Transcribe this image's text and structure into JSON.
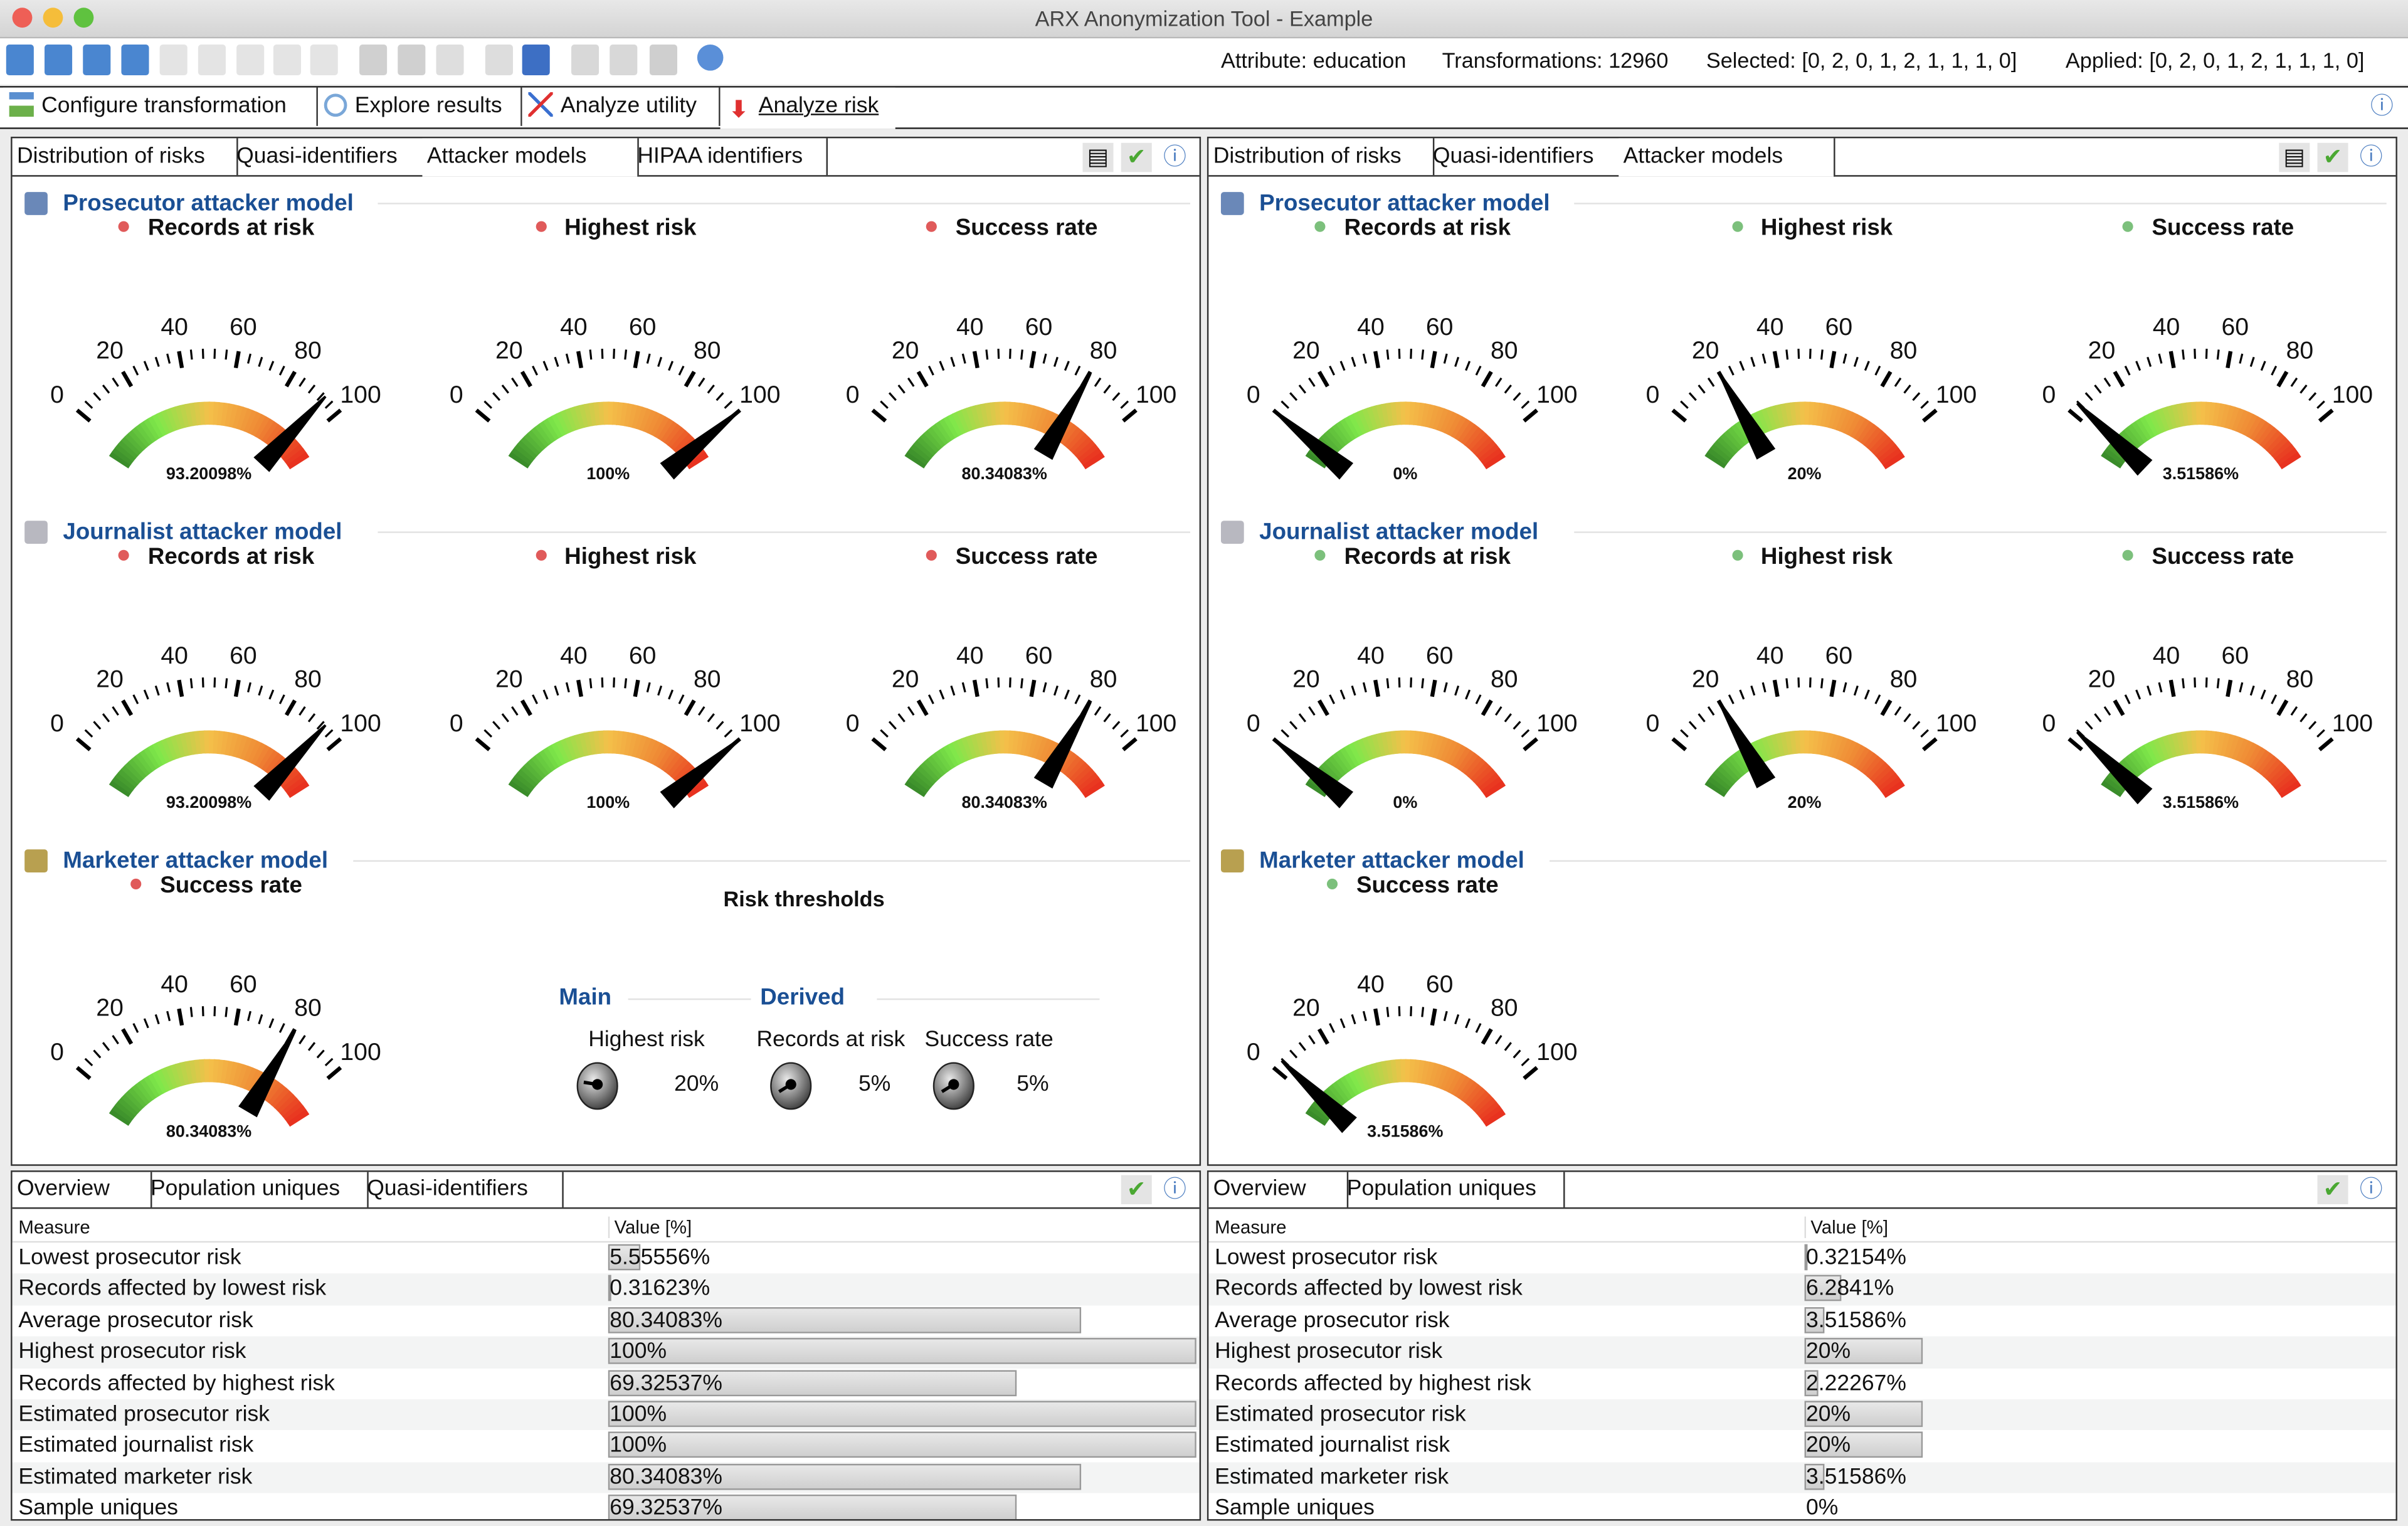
{
  "window": {
    "title": "ARX Anonymization Tool - Example"
  },
  "toolbar": {
    "status": {
      "attribute": "Attribute: education",
      "transformations": "Transformations: 12960",
      "selected": "Selected: [0, 2, 0, 1, 2, 1, 1, 1, 0]",
      "applied": "Applied: [0, 2, 0, 1, 2, 1, 1, 1, 0]"
    },
    "icons": [
      "new-project",
      "open-project",
      "save-project",
      "save-as",
      "import",
      "export",
      "export-cert",
      "anonymize",
      "anonymize-alt",
      "apply",
      "cancel",
      "hierarchy",
      "wizard",
      "table",
      "layout",
      "list",
      "grid",
      "help"
    ]
  },
  "main_tabs": [
    {
      "label": "Configure transformation",
      "icon": "hierarchy-icon"
    },
    {
      "label": "Explore results",
      "icon": "magnifier-icon"
    },
    {
      "label": "Analyze utility",
      "icon": "chart-icon"
    },
    {
      "label": "Analyze risk",
      "icon": "risk-arrow-icon",
      "active": true
    }
  ],
  "gauge_scale": {
    "ticks": [
      "0",
      "20",
      "40",
      "60",
      "80",
      "100"
    ],
    "min": 0,
    "max": 100
  },
  "colors": {
    "accent": "#1a4f94",
    "risk_dot_input": "#e05a5a",
    "risk_dot_output": "#7cc07c"
  },
  "left": {
    "tabs": [
      "Distribution of risks",
      "Quasi-identifiers",
      "Attacker models",
      "HIPAA identifiers"
    ],
    "active_tab": 2,
    "sections": [
      {
        "title": "Prosecutor attacker model",
        "gauges": [
          {
            "label": "Records at risk",
            "value": 93.20098,
            "value_text": "93.20098%"
          },
          {
            "label": "Highest risk",
            "value": 100,
            "value_text": "100%"
          },
          {
            "label": "Success rate",
            "value": 80.34083,
            "value_text": "80.34083%"
          }
        ]
      },
      {
        "title": "Journalist attacker model",
        "gauges": [
          {
            "label": "Records at risk",
            "value": 93.20098,
            "value_text": "93.20098%"
          },
          {
            "label": "Highest risk",
            "value": 100,
            "value_text": "100%"
          },
          {
            "label": "Success rate",
            "value": 80.34083,
            "value_text": "80.34083%"
          }
        ]
      },
      {
        "title": "Marketer attacker model",
        "gauges": [
          {
            "label": "Success rate",
            "value": 80.34083,
            "value_text": "80.34083%"
          }
        ]
      }
    ],
    "thresholds": {
      "title": "Risk thresholds",
      "main_label": "Main",
      "derived_label": "Derived",
      "items": [
        {
          "label": "Highest risk",
          "value": 20,
          "value_text": "20%"
        },
        {
          "label": "Records at risk",
          "value": 5,
          "value_text": "5%"
        },
        {
          "label": "Success rate",
          "value": 5,
          "value_text": "5%"
        }
      ]
    },
    "bottom_tabs": [
      "Overview",
      "Population uniques",
      "Quasi-identifiers"
    ],
    "table": {
      "headers": [
        "Measure",
        "Value [%]"
      ],
      "rows": [
        {
          "measure": "Lowest prosecutor risk",
          "value": 5.55556,
          "value_text": "5.55556%"
        },
        {
          "measure": "Records affected by lowest risk",
          "value": 0.31623,
          "value_text": "0.31623%"
        },
        {
          "measure": "Average prosecutor risk",
          "value": 80.34083,
          "value_text": "80.34083%"
        },
        {
          "measure": "Highest prosecutor risk",
          "value": 100,
          "value_text": "100%"
        },
        {
          "measure": "Records affected by highest risk",
          "value": 69.32537,
          "value_text": "69.32537%"
        },
        {
          "measure": "Estimated prosecutor risk",
          "value": 100,
          "value_text": "100%"
        },
        {
          "measure": "Estimated journalist risk",
          "value": 100,
          "value_text": "100%"
        },
        {
          "measure": "Estimated marketer risk",
          "value": 80.34083,
          "value_text": "80.34083%"
        },
        {
          "measure": "Sample uniques",
          "value": 69.32537,
          "value_text": "69.32537%"
        }
      ]
    }
  },
  "right": {
    "tabs": [
      "Distribution of risks",
      "Quasi-identifiers",
      "Attacker models"
    ],
    "active_tab": 2,
    "sections": [
      {
        "title": "Prosecutor attacker model",
        "gauges": [
          {
            "label": "Records at risk",
            "value": 0,
            "value_text": "0%"
          },
          {
            "label": "Highest risk",
            "value": 20,
            "value_text": "20%"
          },
          {
            "label": "Success rate",
            "value": 3.51586,
            "value_text": "3.51586%"
          }
        ]
      },
      {
        "title": "Journalist attacker model",
        "gauges": [
          {
            "label": "Records at risk",
            "value": 0,
            "value_text": "0%"
          },
          {
            "label": "Highest risk",
            "value": 20,
            "value_text": "20%"
          },
          {
            "label": "Success rate",
            "value": 3.51586,
            "value_text": "3.51586%"
          }
        ]
      },
      {
        "title": "Marketer attacker model",
        "gauges": [
          {
            "label": "Success rate",
            "value": 3.51586,
            "value_text": "3.51586%"
          }
        ]
      }
    ],
    "bottom_tabs": [
      "Overview",
      "Population uniques"
    ],
    "table": {
      "headers": [
        "Measure",
        "Value [%]"
      ],
      "rows": [
        {
          "measure": "Lowest prosecutor risk",
          "value": 0.32154,
          "value_text": "0.32154%"
        },
        {
          "measure": "Records affected by lowest risk",
          "value": 6.2841,
          "value_text": "6.2841%"
        },
        {
          "measure": "Average prosecutor risk",
          "value": 3.51586,
          "value_text": "3.51586%"
        },
        {
          "measure": "Highest prosecutor risk",
          "value": 20,
          "value_text": "20%"
        },
        {
          "measure": "Records affected by highest risk",
          "value": 2.22267,
          "value_text": "2.22267%"
        },
        {
          "measure": "Estimated prosecutor risk",
          "value": 20,
          "value_text": "20%"
        },
        {
          "measure": "Estimated journalist risk",
          "value": 20,
          "value_text": "20%"
        },
        {
          "measure": "Estimated marketer risk",
          "value": 3.51586,
          "value_text": "3.51586%"
        },
        {
          "measure": "Sample uniques",
          "value": 0,
          "value_text": "0%"
        }
      ]
    }
  }
}
